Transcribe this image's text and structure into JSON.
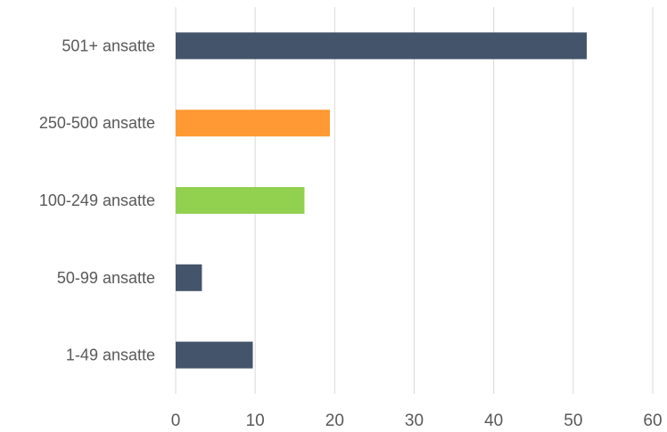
{
  "chart_data": {
    "type": "bar",
    "orientation": "horizontal",
    "title": "",
    "xlabel": "",
    "ylabel": "",
    "categories": [
      "501+ ansatte",
      "250-500 ansatte",
      "100-249 ansatte",
      "50-99 ansatte",
      "1-49 ansatte"
    ],
    "values": [
      51.7,
      19.4,
      16.2,
      3.3,
      9.7
    ],
    "bar_colors": [
      "#44546A",
      "#FF9933",
      "#92D050",
      "#44546A",
      "#44546A"
    ],
    "xlim": [
      0,
      60
    ],
    "xticks": [
      0,
      10,
      20,
      30,
      40,
      50,
      60
    ],
    "grid": "vertical",
    "legend": "none"
  }
}
